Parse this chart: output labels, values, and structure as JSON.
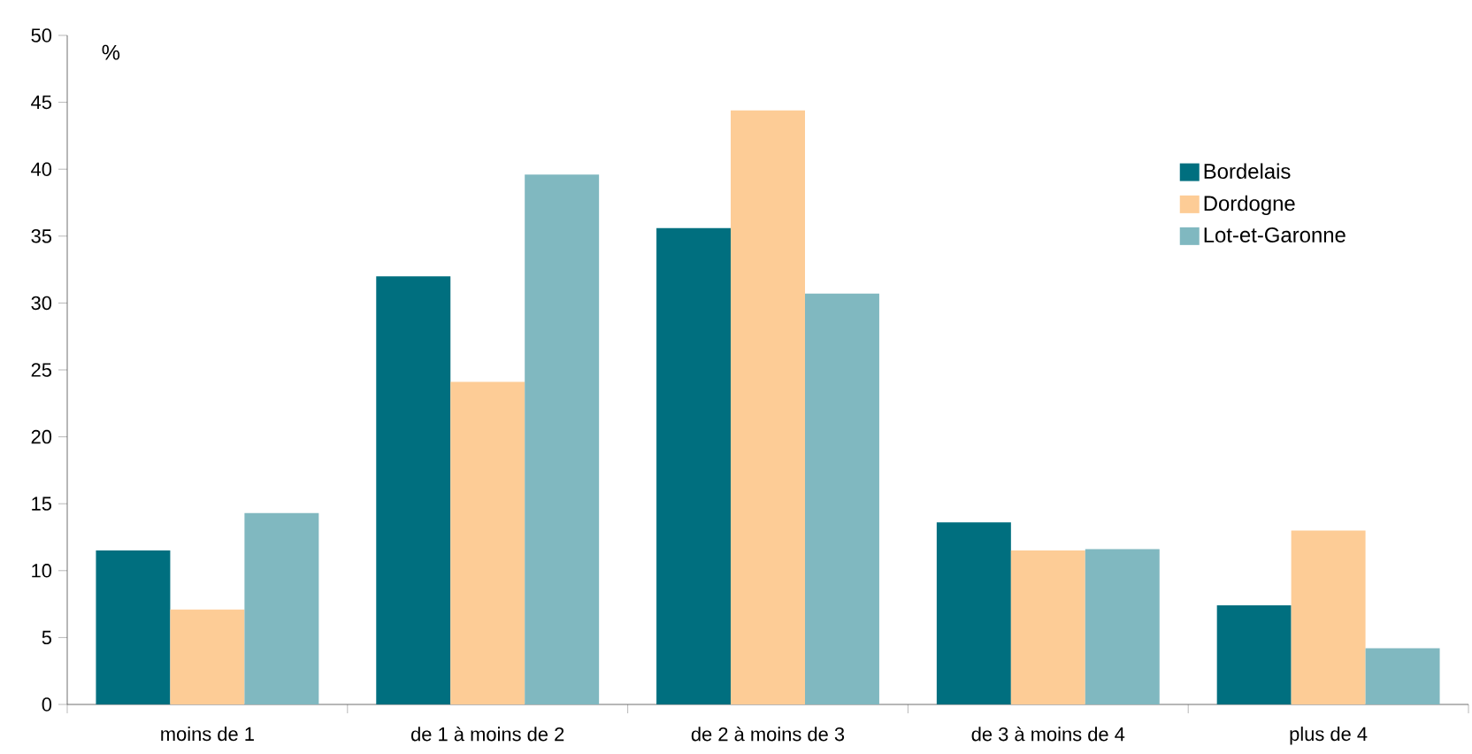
{
  "chart_data": {
    "type": "bar",
    "ylabel": "%",
    "categories": [
      "moins de 1",
      "de 1 à moins de 2",
      "de 2 à moins de 3",
      "de 3 à moins de 4",
      "plus de 4"
    ],
    "series": [
      {
        "name": "Bordelais",
        "color": "#006f7f",
        "values": [
          11.5,
          32.0,
          35.6,
          13.6,
          7.4
        ]
      },
      {
        "name": "Dordogne",
        "color": "#fdcc96",
        "values": [
          7.1,
          24.1,
          44.4,
          11.5,
          13.0
        ]
      },
      {
        "name": "Lot-et-Garonne",
        "color": "#80b8c0",
        "values": [
          14.3,
          39.6,
          30.7,
          11.6,
          4.2
        ]
      }
    ],
    "ylim": [
      0,
      50
    ],
    "yticks": [
      0,
      5,
      10,
      15,
      20,
      25,
      30,
      35,
      40,
      45,
      50
    ],
    "grid": false,
    "legend": "right"
  }
}
